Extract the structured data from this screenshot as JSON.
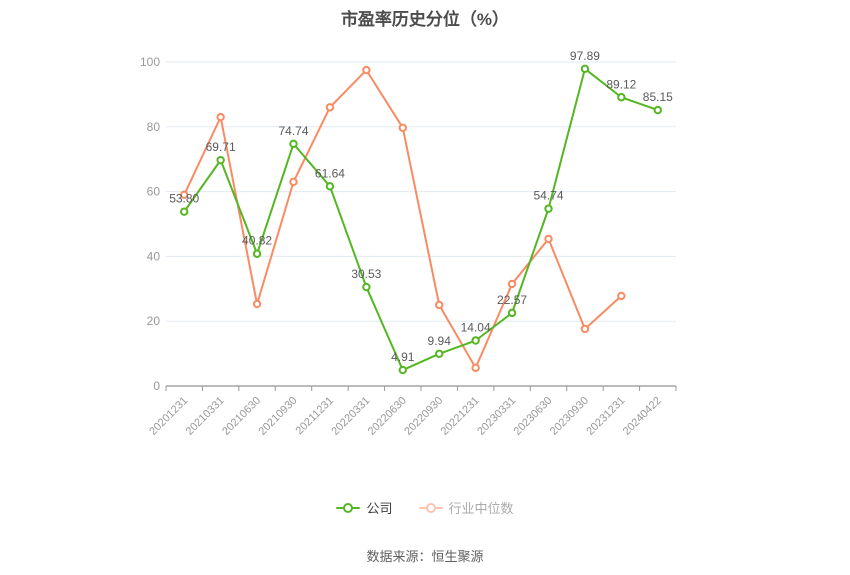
{
  "title": "市盈率历史分位（%）",
  "source": "数据来源：恒生聚源",
  "legend": {
    "company": "公司",
    "industry": "行业中位数"
  },
  "colors": {
    "company": "#54b622",
    "industry": "#f98b62",
    "industry_legend_faded": "rgba(249,139,98,0.5)",
    "grid": "#e2eaf2",
    "axis_line": "#777777",
    "tick": "#999999",
    "axis_label": "#999999",
    "data_label": "#5a5a5a",
    "title_text": "#4c4c4c",
    "legend_active_text": "#3c3c3c",
    "legend_inactive_text": "#aaaaaa",
    "source_text": "#606060",
    "background": "#ffffff"
  },
  "chart_data": {
    "type": "line",
    "title": "市盈率历史分位（%）",
    "categories": [
      "20201231",
      "20210331",
      "20210630",
      "20210930",
      "20211231",
      "20220331",
      "20220630",
      "20220930",
      "20221231",
      "20230331",
      "20230630",
      "20230930",
      "20231231",
      "20240422"
    ],
    "ylim": [
      0,
      100
    ],
    "yticks": [
      0,
      20,
      40,
      60,
      80,
      100
    ],
    "grid": true,
    "legend_position": "bottom",
    "series": [
      {
        "name": "公司",
        "color_key": "company",
        "show_labels": true,
        "values": [
          53.8,
          69.71,
          40.82,
          74.74,
          61.64,
          30.53,
          4.91,
          9.94,
          14.04,
          22.57,
          54.74,
          97.89,
          89.12,
          85.15
        ],
        "labels": [
          "53.80",
          "69.71",
          "40.82",
          "74.74",
          "61.64",
          "30.53",
          "4.91",
          "9.94",
          "14.04",
          "22.57",
          "54.74",
          "97.89",
          "89.12",
          "85.15"
        ]
      },
      {
        "name": "行业中位数",
        "color_key": "industry",
        "show_labels": false,
        "values": [
          59.0,
          83.0,
          25.3,
          63.0,
          86.0,
          97.5,
          79.7,
          25.0,
          5.6,
          31.5,
          45.4,
          17.6,
          27.8,
          null
        ]
      }
    ]
  }
}
